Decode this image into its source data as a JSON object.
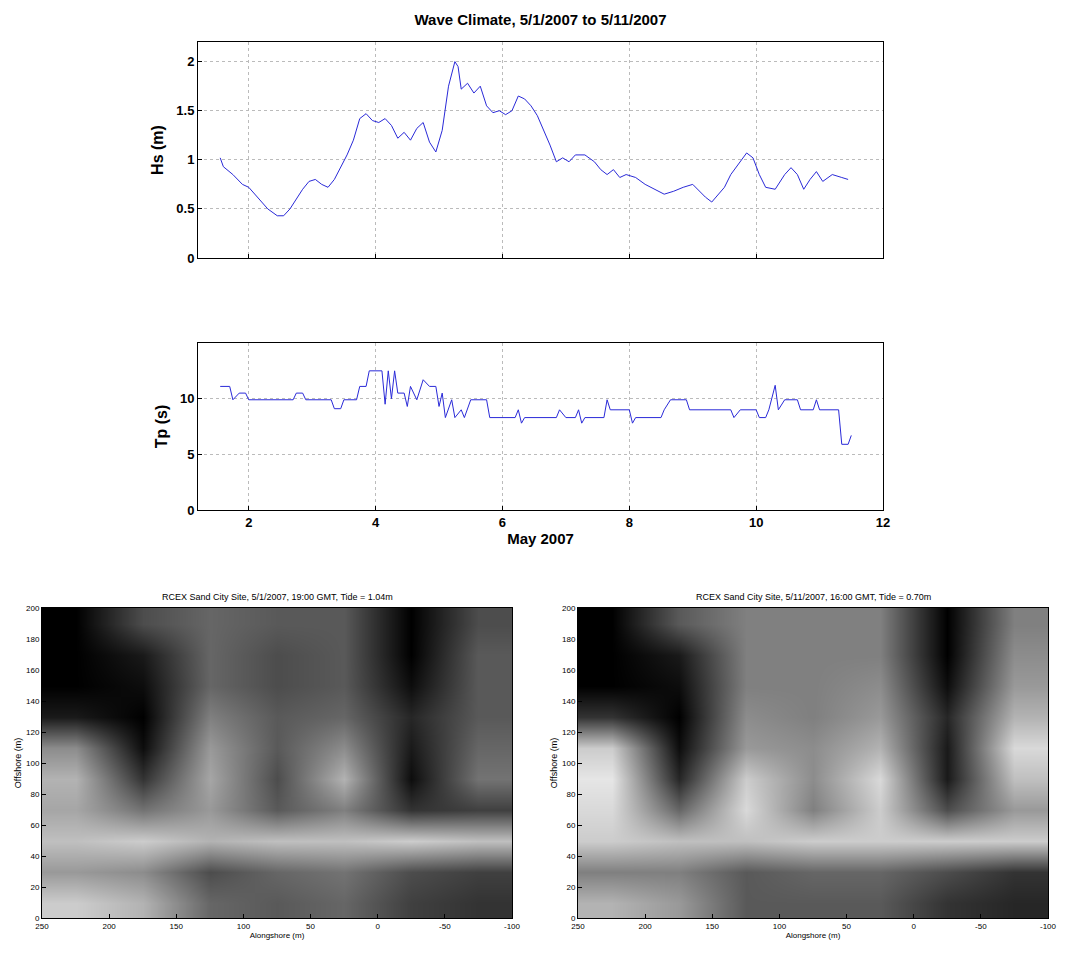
{
  "chart_data": [
    {
      "type": "line",
      "title": "Wave Climate, 5/1/2007 to 5/11/2007",
      "ylabel": "Hs (m)",
      "color": "#2a2ad8",
      "grid": true,
      "tick_labels": "y",
      "xlim": [
        1.2,
        12
      ],
      "xticks": [
        2,
        4,
        6,
        8,
        10,
        12
      ],
      "ylim": [
        0,
        2.2
      ],
      "yticks": [
        0,
        0.5,
        1,
        1.5,
        2
      ],
      "x": [
        1.55,
        1.6,
        1.75,
        1.9,
        2.0,
        2.1,
        2.2,
        2.3,
        2.45,
        2.55,
        2.65,
        2.75,
        2.85,
        2.95,
        3.05,
        3.15,
        3.25,
        3.35,
        3.45,
        3.55,
        3.65,
        3.75,
        3.85,
        3.95,
        4.05,
        4.15,
        4.25,
        4.35,
        4.45,
        4.55,
        4.65,
        4.75,
        4.85,
        4.95,
        5.05,
        5.15,
        5.25,
        5.3,
        5.35,
        5.45,
        5.55,
        5.65,
        5.75,
        5.85,
        5.95,
        6.05,
        6.15,
        6.25,
        6.35,
        6.45,
        6.55,
        6.65,
        6.75,
        6.85,
        6.95,
        7.05,
        7.15,
        7.3,
        7.45,
        7.55,
        7.65,
        7.75,
        7.85,
        7.95,
        8.1,
        8.25,
        8.4,
        8.55,
        8.7,
        8.85,
        9.0,
        9.1,
        9.2,
        9.3,
        9.4,
        9.5,
        9.6,
        9.75,
        9.85,
        9.95,
        10.05,
        10.15,
        10.3,
        10.45,
        10.55,
        10.65,
        10.75,
        10.85,
        10.95,
        11.05,
        11.2,
        11.35,
        11.45
      ],
      "values": [
        1.02,
        0.93,
        0.85,
        0.75,
        0.72,
        0.65,
        0.58,
        0.5,
        0.43,
        0.43,
        0.5,
        0.6,
        0.7,
        0.78,
        0.8,
        0.75,
        0.72,
        0.8,
        0.92,
        1.05,
        1.2,
        1.42,
        1.47,
        1.4,
        1.38,
        1.42,
        1.35,
        1.22,
        1.28,
        1.2,
        1.32,
        1.38,
        1.18,
        1.08,
        1.3,
        1.75,
        2.0,
        1.95,
        1.72,
        1.78,
        1.68,
        1.75,
        1.55,
        1.48,
        1.5,
        1.46,
        1.5,
        1.65,
        1.62,
        1.55,
        1.45,
        1.3,
        1.15,
        0.98,
        1.02,
        0.98,
        1.05,
        1.05,
        0.98,
        0.9,
        0.85,
        0.9,
        0.82,
        0.85,
        0.82,
        0.75,
        0.7,
        0.65,
        0.68,
        0.72,
        0.75,
        0.68,
        0.62,
        0.57,
        0.65,
        0.72,
        0.85,
        0.98,
        1.07,
        1.02,
        0.85,
        0.72,
        0.7,
        0.85,
        0.92,
        0.85,
        0.7,
        0.8,
        0.88,
        0.78,
        0.85,
        0.82,
        0.8
      ]
    },
    {
      "type": "line",
      "xlabel": "May 2007",
      "ylabel": "Tp (s)",
      "color": "#2a2ad8",
      "grid": true,
      "xlim": [
        1.2,
        12
      ],
      "xticks": [
        2,
        4,
        6,
        8,
        10,
        12
      ],
      "ylim": [
        0,
        15
      ],
      "yticks": [
        0,
        5,
        10
      ],
      "x": [
        1.55,
        1.7,
        1.75,
        1.85,
        1.95,
        2.0,
        2.7,
        2.75,
        2.85,
        2.9,
        3.3,
        3.35,
        3.45,
        3.5,
        3.7,
        3.75,
        3.85,
        3.9,
        4.1,
        4.15,
        4.2,
        4.25,
        4.3,
        4.35,
        4.45,
        4.5,
        4.55,
        4.65,
        4.75,
        4.85,
        4.95,
        5.0,
        5.05,
        5.1,
        5.2,
        5.25,
        5.35,
        5.4,
        5.5,
        5.75,
        5.8,
        6.2,
        6.25,
        6.3,
        6.35,
        6.85,
        6.9,
        7.0,
        7.15,
        7.2,
        7.25,
        7.3,
        7.6,
        7.65,
        7.7,
        8.0,
        8.05,
        8.1,
        8.5,
        8.55,
        8.65,
        8.9,
        8.95,
        9.6,
        9.65,
        9.75,
        10.0,
        10.05,
        10.15,
        10.2,
        10.3,
        10.35,
        10.45,
        10.65,
        10.7,
        10.9,
        10.95,
        11.0,
        11.3,
        11.35,
        11.45,
        11.5
      ],
      "values": [
        11.1,
        11.1,
        9.9,
        10.5,
        10.5,
        9.9,
        9.9,
        10.5,
        10.5,
        9.9,
        9.9,
        9.1,
        9.1,
        9.9,
        9.9,
        11.1,
        11.1,
        12.5,
        12.5,
        9.5,
        12.5,
        10.0,
        12.5,
        10.5,
        10.5,
        9.3,
        11.1,
        9.9,
        11.7,
        11.1,
        11.1,
        9.3,
        10.5,
        8.3,
        9.9,
        8.3,
        9.0,
        8.3,
        9.9,
        9.9,
        8.3,
        8.3,
        9.0,
        7.8,
        8.3,
        8.3,
        9.0,
        8.3,
        8.3,
        9.0,
        7.8,
        8.3,
        8.3,
        9.9,
        9.0,
        9.0,
        7.8,
        8.3,
        8.3,
        9.0,
        9.9,
        9.9,
        9.0,
        9.0,
        8.3,
        9.0,
        9.0,
        8.3,
        8.3,
        9.0,
        11.2,
        9.0,
        9.9,
        9.9,
        9.0,
        9.0,
        9.9,
        9.0,
        9.0,
        5.9,
        5.9,
        6.7
      ]
    },
    {
      "type": "heatmap",
      "title": "RCEX Sand City Site, 5/1/2007, 19:00 GMT, Tide = 1.04m",
      "xlabel": "Alongshore (m)",
      "ylabel": "Offshore (m)",
      "color": "gray",
      "xlim": [
        250,
        -100
      ],
      "xticks": [
        250,
        200,
        150,
        100,
        50,
        0,
        -50,
        -100
      ],
      "ylim": [
        0,
        200
      ],
      "yticks": [
        0,
        20,
        40,
        60,
        80,
        100,
        120,
        140,
        160,
        180,
        200
      ],
      "x": [
        225,
        175,
        125,
        75,
        25,
        -25,
        -75
      ],
      "y": [
        10,
        30,
        50,
        70,
        90,
        110,
        130,
        150,
        170,
        190
      ],
      "zlim": [
        0,
        1
      ],
      "cells": [
        [
          0.8,
          0.7,
          0.4,
          0.35,
          0.4,
          0.25,
          0.2
        ],
        [
          0.6,
          0.55,
          0.3,
          0.4,
          0.45,
          0.3,
          0.25
        ],
        [
          0.75,
          0.8,
          0.7,
          0.75,
          0.75,
          0.8,
          0.75
        ],
        [
          0.65,
          0.45,
          0.6,
          0.35,
          0.5,
          0.2,
          0.25
        ],
        [
          0.7,
          0.2,
          0.65,
          0.3,
          0.7,
          0.05,
          0.45
        ],
        [
          0.55,
          0.05,
          0.6,
          0.35,
          0.55,
          0.1,
          0.4
        ],
        [
          0.1,
          0.0,
          0.5,
          0.35,
          0.4,
          0.15,
          0.35
        ],
        [
          0.0,
          0.05,
          0.4,
          0.3,
          0.35,
          0.05,
          0.35
        ],
        [
          0.0,
          0.1,
          0.4,
          0.3,
          0.35,
          0.0,
          0.35
        ],
        [
          0.0,
          0.3,
          0.4,
          0.35,
          0.35,
          0.0,
          0.3
        ]
      ]
    },
    {
      "type": "heatmap",
      "title": "RCEX Sand City Site, 5/11/2007, 16:00 GMT, Tide = 0.70m",
      "xlabel": "Alongshore (m)",
      "ylabel": "Offshore (m)",
      "color": "gray",
      "xlim": [
        250,
        -100
      ],
      "xticks": [
        250,
        200,
        150,
        100,
        50,
        0,
        -50,
        -100
      ],
      "ylim": [
        0,
        200
      ],
      "yticks": [
        0,
        20,
        40,
        60,
        80,
        100,
        120,
        140,
        160,
        180,
        200
      ],
      "x": [
        225,
        175,
        125,
        75,
        25,
        -25,
        -75
      ],
      "y": [
        10,
        30,
        50,
        70,
        90,
        110,
        130,
        150,
        170,
        190
      ],
      "zlim": [
        0,
        1
      ],
      "cells": [
        [
          0.7,
          0.6,
          0.35,
          0.35,
          0.35,
          0.2,
          0.15
        ],
        [
          0.5,
          0.5,
          0.35,
          0.4,
          0.4,
          0.3,
          0.2
        ],
        [
          0.8,
          0.75,
          0.75,
          0.8,
          0.8,
          0.8,
          0.8
        ],
        [
          0.85,
          0.4,
          0.85,
          0.5,
          0.8,
          0.3,
          0.6
        ],
        [
          0.9,
          0.15,
          0.8,
          0.55,
          0.85,
          0.1,
          0.75
        ],
        [
          0.8,
          0.05,
          0.6,
          0.55,
          0.7,
          0.1,
          0.85
        ],
        [
          0.2,
          0.0,
          0.55,
          0.5,
          0.6,
          0.15,
          0.7
        ],
        [
          0.0,
          0.05,
          0.5,
          0.5,
          0.55,
          0.05,
          0.6
        ],
        [
          0.0,
          0.1,
          0.5,
          0.5,
          0.5,
          0.0,
          0.55
        ],
        [
          0.0,
          0.35,
          0.5,
          0.5,
          0.5,
          0.0,
          0.5
        ]
      ]
    }
  ]
}
